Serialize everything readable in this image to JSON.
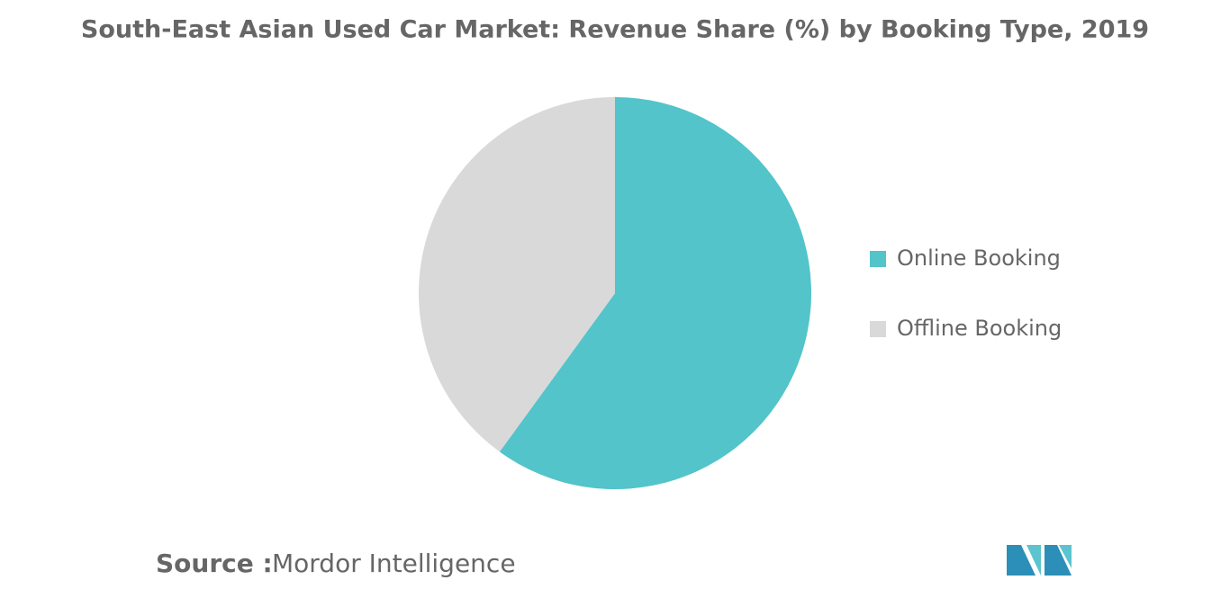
{
  "chart_data": {
    "type": "pie",
    "title": "South-East Asian Used Car Market: Revenue Share (%) by Booking Type, 2019",
    "categories": [
      "Online Booking",
      "Offline Booking"
    ],
    "values": [
      60,
      40
    ],
    "colors": [
      "#52c4ca",
      "#d9d9d9"
    ],
    "legend": "right",
    "source_label": "Source :",
    "source": "Mordor Intelligence"
  }
}
